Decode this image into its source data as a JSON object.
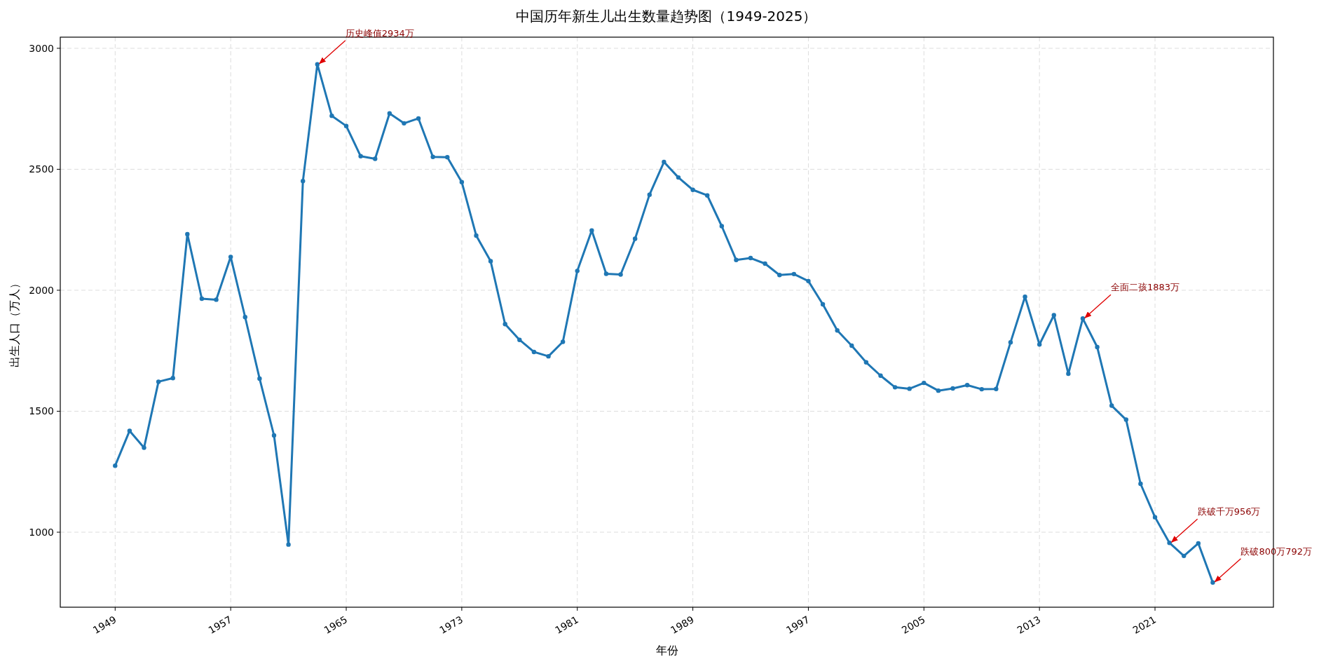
{
  "chart_data": {
    "type": "line",
    "title": "中国历年新生儿出生数量趋势图（1949-2025）",
    "xlabel": "年份",
    "ylabel": "出生人口（万人）",
    "x": [
      1949,
      1950,
      1951,
      1952,
      1953,
      1954,
      1955,
      1956,
      1957,
      1958,
      1959,
      1960,
      1961,
      1962,
      1963,
      1964,
      1965,
      1966,
      1967,
      1968,
      1969,
      1970,
      1971,
      1972,
      1973,
      1974,
      1975,
      1976,
      1977,
      1978,
      1979,
      1980,
      1981,
      1982,
      1983,
      1984,
      1985,
      1986,
      1987,
      1988,
      1989,
      1990,
      1991,
      1992,
      1993,
      1994,
      1995,
      1996,
      1997,
      1998,
      1999,
      2000,
      2001,
      2002,
      2003,
      2004,
      2005,
      2006,
      2007,
      2008,
      2009,
      2010,
      2011,
      2012,
      2013,
      2014,
      2015,
      2016,
      2017,
      2018,
      2019,
      2020,
      2021,
      2022,
      2023,
      2024,
      2025
    ],
    "series": [
      {
        "color": "#1f77b4",
        "values": [
          1275,
          1419,
          1349,
          1622,
          1637,
          2232,
          1965,
          1961,
          2138,
          1889,
          1635,
          1400,
          949,
          2451,
          2934,
          2721,
          2679,
          2554,
          2543,
          2731,
          2690,
          2710,
          2551,
          2550,
          2447,
          2226,
          2120,
          1860,
          1795,
          1745,
          1727,
          1787,
          2080,
          2247,
          2068,
          2065,
          2213,
          2395,
          2530,
          2466,
          2415,
          2392,
          2265,
          2125,
          2133,
          2110,
          2063,
          2067,
          2038,
          1942,
          1834,
          1771,
          1702,
          1647,
          1599,
          1593,
          1617,
          1585,
          1594,
          1608,
          1591,
          1592,
          1785,
          1973,
          1776,
          1897,
          1655,
          1883,
          1765,
          1523,
          1465,
          1200,
          1062,
          956,
          902,
          954,
          792
        ]
      }
    ],
    "xlim": [
      1945.2,
      2029.2
    ],
    "ylim": [
      690,
      3046
    ],
    "xticks": [
      1949,
      1957,
      1965,
      1973,
      1981,
      1989,
      1997,
      2005,
      2013,
      2021
    ],
    "yticks": [
      1000,
      1500,
      2000,
      2500,
      3000
    ],
    "grid": true,
    "marker": "circle",
    "line_style": "solid",
    "annotations": [
      {
        "text": "历史峰值2934万",
        "x": 1963,
        "y": 2934
      },
      {
        "text": "全面二孩1883万",
        "x": 2016,
        "y": 1883
      },
      {
        "text": "跌破千万956万",
        "x": 2022,
        "y": 956
      },
      {
        "text": "跌破800万792万",
        "x": 2025,
        "y": 792
      }
    ]
  }
}
